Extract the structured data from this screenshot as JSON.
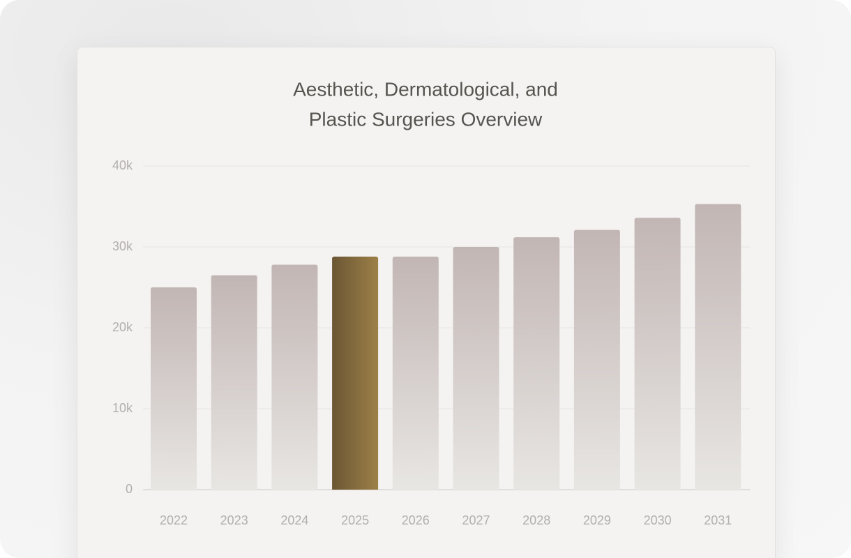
{
  "chart_data": {
    "type": "bar",
    "title": [
      "Aesthetic, Dermatological, and",
      "Plastic Surgeries Overview"
    ],
    "categories": [
      "2022",
      "2023",
      "2024",
      "2025",
      "2026",
      "2027",
      "2028",
      "2029",
      "2030",
      "2031"
    ],
    "values": [
      25000,
      26500,
      27800,
      28800,
      28800,
      30000,
      31200,
      32100,
      33600,
      35300
    ],
    "color": [
      "#c2b6b4",
      "#e8e6e3"
    ],
    "highlight": "2025",
    "highlight_color": [
      "#6b5634",
      "#9d8048"
    ],
    "ylim": [
      0,
      40000
    ],
    "yticks": [
      0,
      {
        "value": 10000,
        "label": "10k"
      },
      {
        "value": 20000,
        "label": "20k"
      },
      {
        "value": 30000,
        "label": "30k"
      },
      {
        "value": 40000,
        "label": "40k"
      }
    ],
    "grid": true
  }
}
